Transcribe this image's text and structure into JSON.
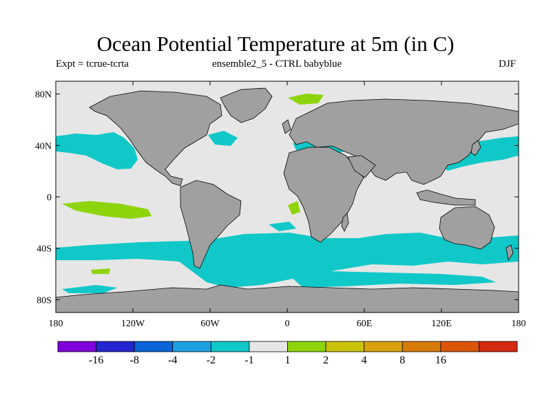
{
  "title": "Ocean Potential Temperature at 5m (in C)",
  "subtitle_left": "Expt = tcrue-tcrta",
  "subtitle_center": "ensemble2_5 - CTRL babyblue",
  "subtitle_right": "DJF",
  "map": {
    "lon_range": [
      -180,
      180
    ],
    "lat_range": [
      -90,
      90
    ],
    "land_color": "#a0a0a0",
    "ocean_base_color": "#e6e6e6",
    "lat_ticks": [
      {
        "value": 80,
        "label": "80N"
      },
      {
        "value": 40,
        "label": "40N"
      },
      {
        "value": 0,
        "label": "0"
      },
      {
        "value": -40,
        "label": "40S"
      },
      {
        "value": -80,
        "label": "80S"
      }
    ],
    "lon_ticks": [
      {
        "value": -180,
        "label": "180"
      },
      {
        "value": -120,
        "label": "120W"
      },
      {
        "value": -60,
        "label": "60W"
      },
      {
        "value": 0,
        "label": "0"
      },
      {
        "value": 60,
        "label": "60E"
      },
      {
        "value": 120,
        "label": "120E"
      },
      {
        "value": 180,
        "label": "180"
      }
    ]
  },
  "colorbar": {
    "colors": [
      "#7f00d8",
      "#2424d0",
      "#0a64d8",
      "#1ca0e0",
      "#10c8c8",
      "#e6e6e6",
      "#8ed40a",
      "#cac30a",
      "#d9a20a",
      "#d67a08",
      "#da5505",
      "#d42a10"
    ],
    "labels": [
      "-16",
      "-8",
      "-4",
      "-2",
      "-1",
      "1",
      "2",
      "4",
      "8",
      "16"
    ]
  }
}
